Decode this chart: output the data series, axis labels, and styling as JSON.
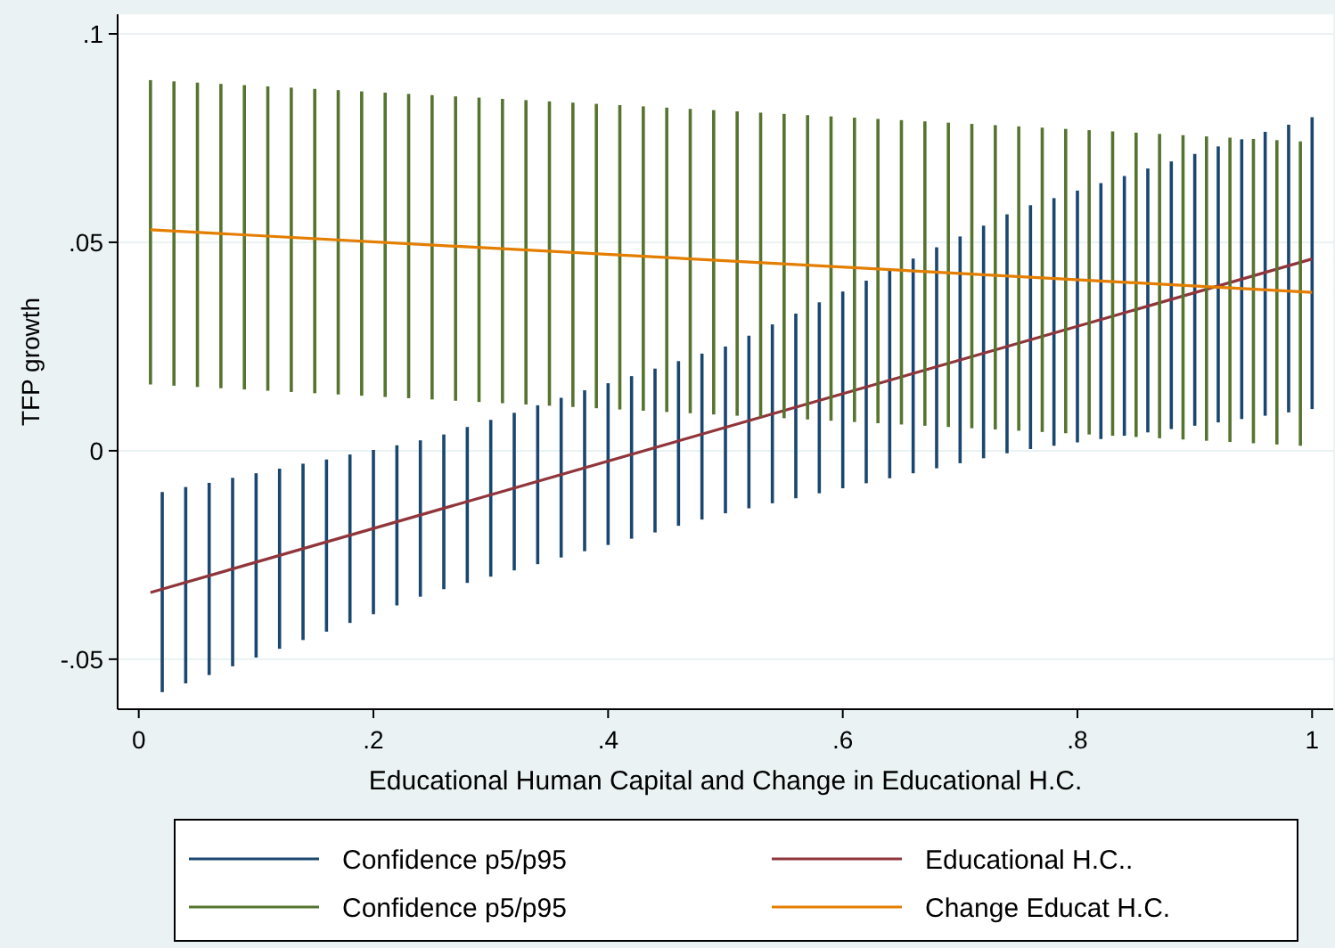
{
  "chart_data": {
    "type": "line",
    "xlabel": "Educational Human Capital and Change in Educational H.C.",
    "ylabel": "TFP growth",
    "xlim": [
      -0.018,
      1.018
    ],
    "xticks": [
      0,
      {
        "value": 0.2,
        "label": ".2"
      },
      {
        "value": 0.4,
        "label": ".4"
      },
      {
        "value": 0.6,
        "label": ".6"
      },
      {
        "value": 0.8,
        "label": ".8"
      },
      1
    ],
    "ylim": [
      -0.062,
      0.1047
    ],
    "yticks": [
      {
        "value": -0.05,
        "label": "-.05"
      },
      0,
      {
        "value": 0.05,
        "label": ".05"
      },
      {
        "value": 0.1,
        "label": ".1"
      }
    ],
    "grid": "y",
    "legend": "bottom",
    "series": [
      {
        "name": "Confidence p5/p95",
        "type": "bar",
        "color": "#1a476f",
        "x": [
          0.02,
          0.04,
          0.06,
          0.08,
          0.1,
          0.12,
          0.14,
          0.16,
          0.18,
          0.2,
          0.22,
          0.24,
          0.26,
          0.28,
          0.3,
          0.32,
          0.34,
          0.36,
          0.38,
          0.4,
          0.42,
          0.44,
          0.46,
          0.48,
          0.5,
          0.52,
          0.54,
          0.56,
          0.58,
          0.6,
          0.62,
          0.64,
          0.66,
          0.68,
          0.7,
          0.72,
          0.74,
          0.76,
          0.78,
          0.8,
          0.82,
          0.84,
          0.86,
          0.88,
          0.9,
          0.92,
          0.94,
          0.96,
          0.98,
          1.0
        ],
        "base": [
          -0.0579,
          -0.0558,
          -0.0538,
          -0.0517,
          -0.0496,
          -0.0475,
          -0.0454,
          -0.0434,
          -0.0413,
          -0.0392,
          -0.0371,
          -0.035,
          -0.0332,
          -0.0317,
          -0.0302,
          -0.0287,
          -0.0272,
          -0.0256,
          -0.0241,
          -0.0226,
          -0.0211,
          -0.0196,
          -0.018,
          -0.0165,
          -0.015,
          -0.0138,
          -0.0126,
          -0.0114,
          -0.0102,
          -0.009,
          -0.0078,
          -0.0066,
          -0.0054,
          -0.0042,
          -0.003,
          -0.0018,
          -0.0006,
          0.0004,
          0.0012,
          0.002,
          0.0028,
          0.0036,
          0.0044,
          0.0052,
          0.006,
          0.0068,
          0.0076,
          0.0084,
          0.0092,
          0.01
        ],
        "values": [
          0.048,
          0.0471,
          0.0461,
          0.0452,
          0.0442,
          0.0432,
          0.0423,
          0.0413,
          0.0404,
          0.0394,
          0.0384,
          0.0375,
          0.0371,
          0.0374,
          0.0376,
          0.0378,
          0.0381,
          0.0383,
          0.0386,
          0.0388,
          0.039,
          0.0393,
          0.0395,
          0.0398,
          0.04,
          0.0414,
          0.0429,
          0.0443,
          0.0458,
          0.0472,
          0.0486,
          0.0501,
          0.0515,
          0.053,
          0.0544,
          0.0558,
          0.0573,
          0.0585,
          0.0594,
          0.0604,
          0.0614,
          0.0623,
          0.0633,
          0.0642,
          0.0652,
          0.0662,
          0.0671,
          0.0681,
          0.069,
          0.07
        ]
      },
      {
        "name": "Educational H.C..",
        "color": "#90353b",
        "x": [
          0.01,
          1.0
        ],
        "values": [
          -0.034,
          0.046
        ]
      },
      {
        "name": "Confidence p5/p95",
        "type": "bar",
        "color": "#55752f",
        "x": [
          0.01,
          0.03,
          0.05,
          0.07,
          0.09,
          0.11,
          0.13,
          0.15,
          0.17,
          0.19,
          0.21,
          0.23,
          0.25,
          0.27,
          0.29,
          0.31,
          0.33,
          0.35,
          0.37,
          0.39,
          0.41,
          0.43,
          0.45,
          0.47,
          0.49,
          0.51,
          0.53,
          0.55,
          0.57,
          0.59,
          0.61,
          0.63,
          0.65,
          0.67,
          0.69,
          0.71,
          0.73,
          0.75,
          0.77,
          0.79,
          0.81,
          0.83,
          0.85,
          0.87,
          0.89,
          0.91,
          0.93,
          0.95,
          0.97,
          0.99
        ],
        "base": [
          0.0159,
          0.0156,
          0.0153,
          0.015,
          0.0147,
          0.0144,
          0.0141,
          0.0138,
          0.0135,
          0.0132,
          0.0129,
          0.0126,
          0.0123,
          0.012,
          0.0117,
          0.0114,
          0.0111,
          0.0108,
          0.0105,
          0.0102,
          0.0099,
          0.0096,
          0.0093,
          0.009,
          0.0087,
          0.0084,
          0.0081,
          0.0078,
          0.0075,
          0.0072,
          0.0069,
          0.0066,
          0.0063,
          0.006,
          0.0057,
          0.0054,
          0.0051,
          0.0048,
          0.0045,
          0.0042,
          0.0039,
          0.0036,
          0.0033,
          0.003,
          0.0027,
          0.0024,
          0.0021,
          0.0018,
          0.0015,
          0.0012
        ],
        "values": [
          0.073,
          0.073,
          0.073,
          0.073,
          0.073,
          0.073,
          0.073,
          0.073,
          0.073,
          0.073,
          0.073,
          0.073,
          0.073,
          0.073,
          0.073,
          0.073,
          0.073,
          0.073,
          0.073,
          0.073,
          0.073,
          0.073,
          0.073,
          0.073,
          0.073,
          0.073,
          0.073,
          0.073,
          0.073,
          0.073,
          0.073,
          0.073,
          0.073,
          0.073,
          0.073,
          0.073,
          0.073,
          0.073,
          0.073,
          0.073,
          0.073,
          0.073,
          0.073,
          0.073,
          0.073,
          0.073,
          0.073,
          0.073,
          0.073,
          0.073
        ]
      },
      {
        "name": "Change Educat H.C.",
        "color": "#e37e00",
        "x": [
          0.01,
          1.0
        ],
        "values": [
          0.053,
          0.038
        ]
      }
    ]
  }
}
